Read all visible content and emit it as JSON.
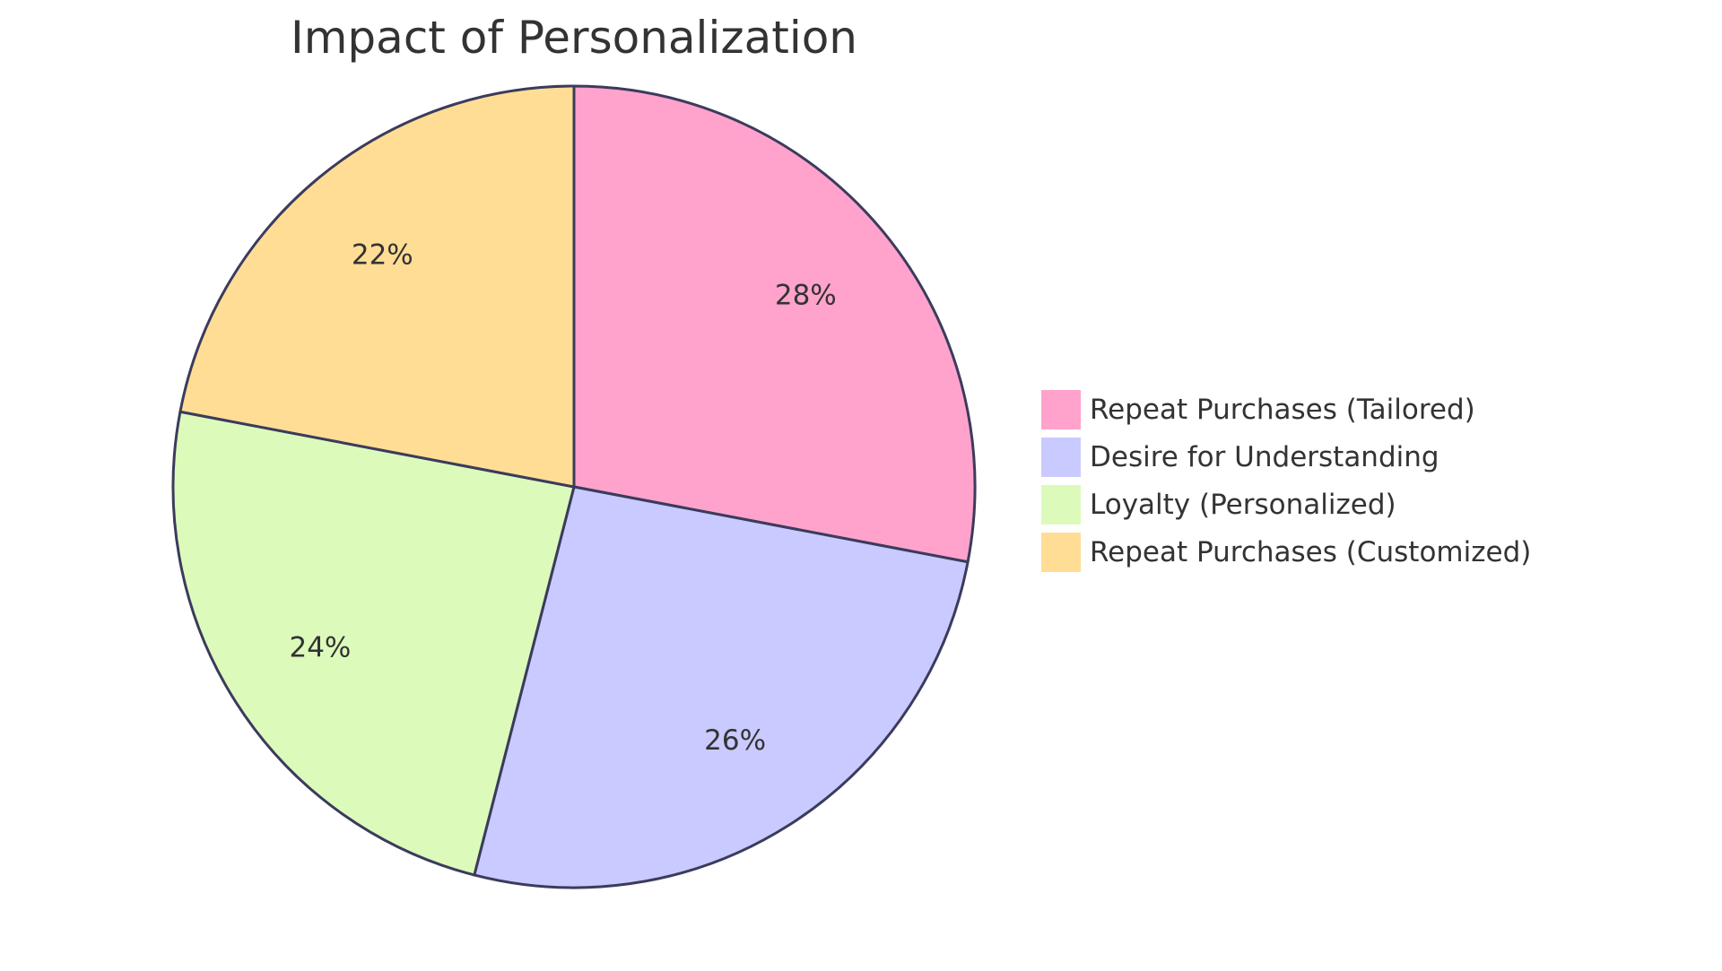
{
  "chart_data": {
    "type": "pie",
    "title": "Impact of Personalization",
    "categories": [
      "Repeat Purchases (Tailored)",
      "Desire for Understanding",
      "Loyalty (Personalized)",
      "Repeat Purchases (Customized)"
    ],
    "values": [
      28,
      26,
      24,
      22
    ],
    "value_labels": [
      "28%",
      "26%",
      "24%",
      "22%"
    ],
    "colors": [
      "#ffa3cd",
      "#c9caff",
      "#dcfbbb",
      "#ffdd95"
    ],
    "legend_position": "right",
    "start_angle": "12 o'clock",
    "direction": "clockwise"
  }
}
